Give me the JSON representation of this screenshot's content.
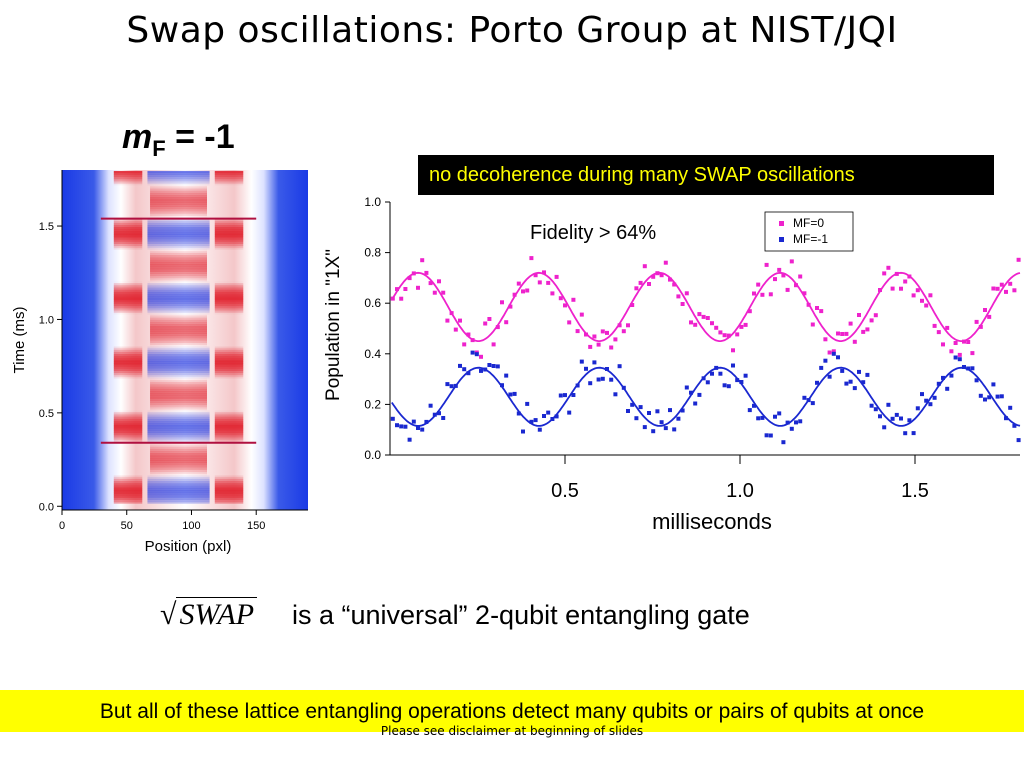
{
  "slide": {
    "title": "Swap oscillations: Porto Group at NIST/JQI",
    "mf_label_italic": "m",
    "mf_label_sub": "F",
    "mf_label_rest": " = -1",
    "note_box": "no decoherence during many SWAP oscillations",
    "fidelity_note": "Fidelity > 64%",
    "swap_symbol": "SWAP",
    "swap_caption": "is a “universal” 2-qubit entangling gate",
    "bottom_banner": "But all of these lattice entangling operations detect many qubits or pairs of qubits at once",
    "disclaimer": "Please see disclaimer at beginning of slides",
    "colors": {
      "mf0": "#ee22cc",
      "mfm1": "#1a28d0",
      "note_bg": "#000000",
      "note_text": "#ffff00",
      "banner_bg": "#ffff00"
    }
  },
  "chart_data": [
    {
      "type": "heatmap",
      "xlabel": "Position (pxl)",
      "ylabel": "Time (ms)",
      "xlim": [
        0,
        190
      ],
      "ylim": [
        -0.02,
        1.8
      ],
      "xticks": [
        "0",
        "50",
        "100",
        "150"
      ],
      "yticks": [
        "0.0",
        "0.5",
        "1.0",
        "1.5"
      ],
      "colormap": [
        "#1030e0",
        "#ffffff",
        "#e01020"
      ]
    },
    {
      "type": "scatter",
      "xlabel": "milliseconds",
      "ylabel": "Population in \"1X\"",
      "xlim": [
        0,
        1.8
      ],
      "ylim": [
        0,
        1.0
      ],
      "xticks": [
        "0.5",
        "1.0",
        "1.5"
      ],
      "yticks": [
        "0.0",
        "0.2",
        "0.4",
        "0.6",
        "0.8",
        "1.0"
      ],
      "legend_position": "top-right",
      "series": [
        {
          "name": "MF=0",
          "color": "#ee22cc",
          "fit_mean": 0.585,
          "fit_amplitude": 0.135,
          "period_ms": 0.345,
          "phase_peak_ms": 0.08
        },
        {
          "name": "MF=-1",
          "color": "#1a28d0",
          "fit_mean": 0.23,
          "fit_amplitude": 0.115,
          "period_ms": 0.345,
          "phase_peak_ms": 0.253
        }
      ]
    }
  ]
}
